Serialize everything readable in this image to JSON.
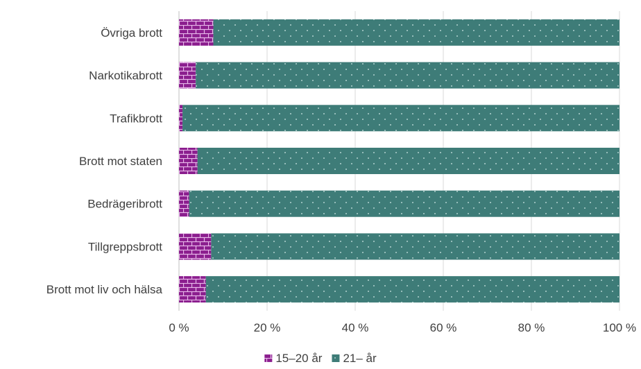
{
  "chart_data": {
    "type": "bar",
    "orientation": "horizontal",
    "stacked": true,
    "categories": [
      "Övriga brott",
      "Narkotikabrott",
      "Trafikbrott",
      "Brott mot staten",
      "Bedrägeribrott",
      "Tillgreppsbrott",
      "Brott mot liv och hälsa"
    ],
    "series": [
      {
        "name": "15–20 år",
        "values": [
          7.8,
          3.8,
          0.8,
          4.2,
          2.3,
          7.3,
          6.1
        ],
        "color": "#8b1e8e",
        "pattern": "brick"
      },
      {
        "name": "21– år",
        "values": [
          92.2,
          96.2,
          99.2,
          95.8,
          97.7,
          92.7,
          93.9
        ],
        "color": "#3e7c78",
        "pattern": "dots"
      }
    ],
    "x_ticks": [
      "0 %",
      "20 %",
      "40 %",
      "60 %",
      "80 %",
      "100 %"
    ],
    "xlim": [
      0,
      100
    ],
    "grid": "vertical",
    "legend_position": "bottom"
  }
}
